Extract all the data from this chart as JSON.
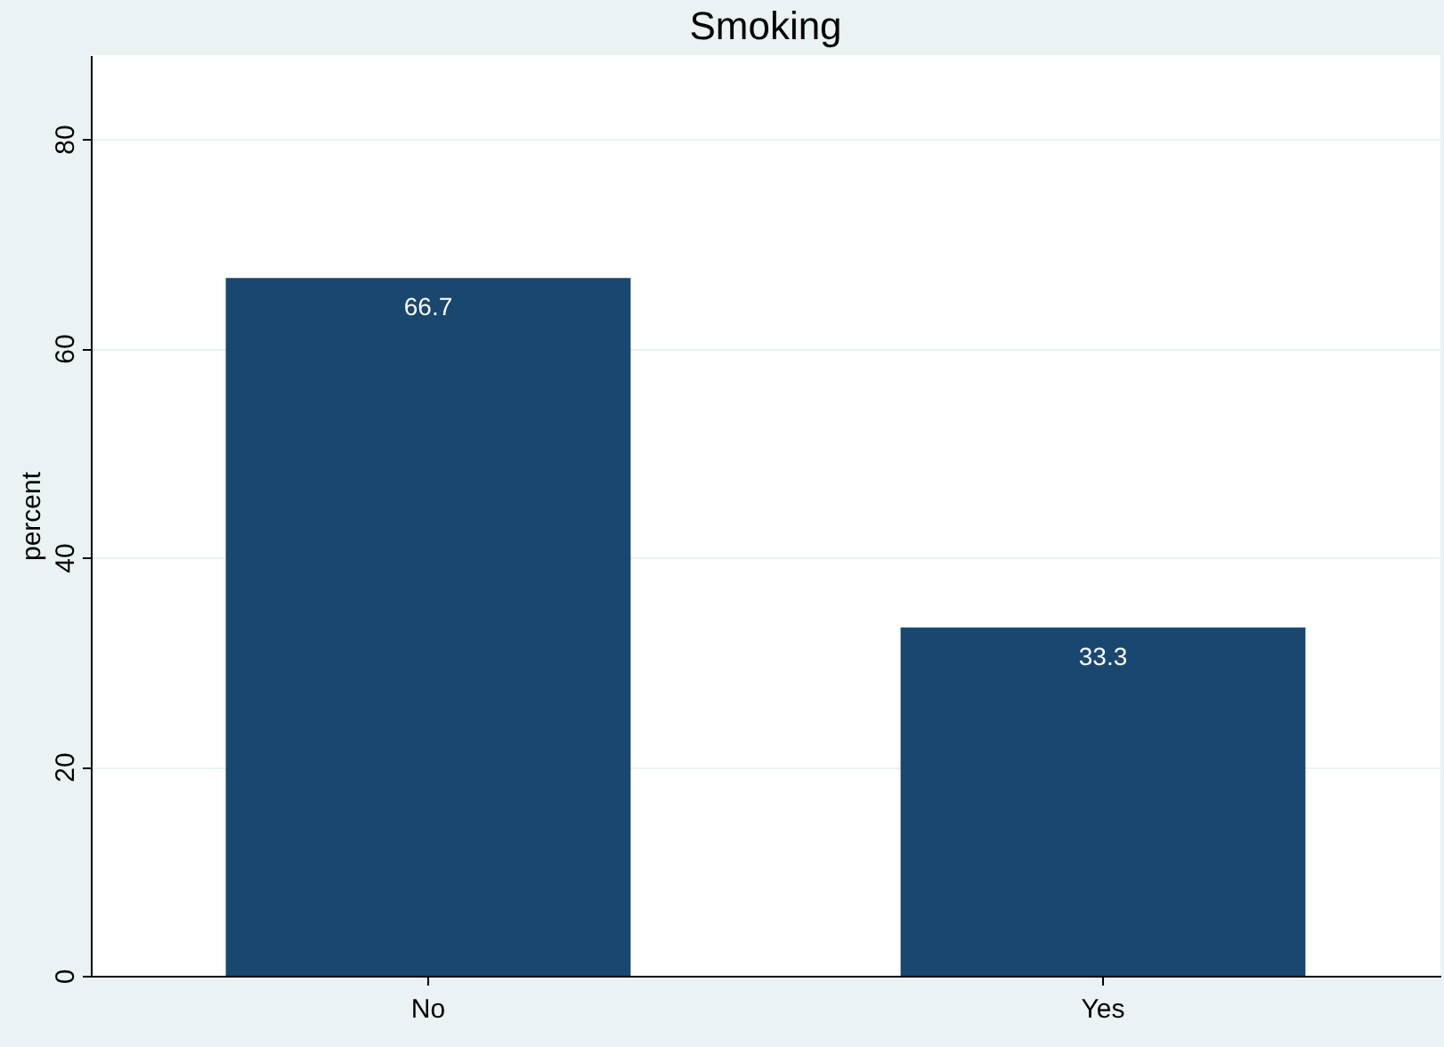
{
  "chart_data": {
    "type": "bar",
    "title": "Smoking",
    "ylabel": "percent",
    "categories": [
      "No",
      "Yes"
    ],
    "values": [
      66.7,
      33.3
    ],
    "color": "#1a476f",
    "ylim": [
      0,
      88
    ],
    "yticks": [
      0,
      20,
      40,
      60,
      80
    ],
    "grid": "y",
    "data_labels": true
  }
}
